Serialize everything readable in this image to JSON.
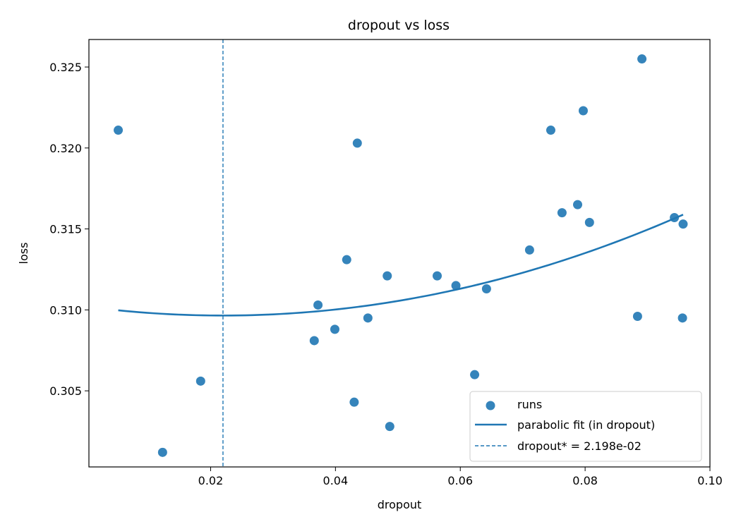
{
  "chart_data": {
    "type": "scatter",
    "title": "dropout vs loss",
    "xlabel": "dropout",
    "ylabel": "loss",
    "xlim": [
      0.0005,
      0.1
    ],
    "ylim": [
      0.3003,
      0.3267
    ],
    "xticks": [
      0.02,
      0.04,
      0.06,
      0.08,
      0.1
    ],
    "xtick_labels": [
      "0.02",
      "0.04",
      "0.06",
      "0.08",
      "0.10"
    ],
    "yticks": [
      0.305,
      0.31,
      0.315,
      0.32,
      0.325
    ],
    "ytick_labels": [
      "0.305",
      "0.310",
      "0.315",
      "0.320",
      "0.325"
    ],
    "grid": false,
    "legend_position": "bottom-right",
    "colors": {
      "points": "#1f77b4",
      "fit": "#1f77b4",
      "vline": "#1f77b4"
    },
    "series": [
      {
        "name": "runs",
        "kind": "scatter",
        "x": [
          0.0052,
          0.0123,
          0.0184,
          0.0366,
          0.0372,
          0.0399,
          0.0418,
          0.043,
          0.0435,
          0.0452,
          0.0483,
          0.0487,
          0.0563,
          0.0593,
          0.0623,
          0.0642,
          0.0711,
          0.0745,
          0.0763,
          0.0788,
          0.0797,
          0.0807,
          0.0884,
          0.0891,
          0.0943,
          0.0956,
          0.0957
        ],
        "y": [
          0.3211,
          0.3012,
          0.3056,
          0.3081,
          0.3103,
          0.3088,
          0.3131,
          0.3043,
          0.3203,
          0.3095,
          0.3121,
          0.3028,
          0.3121,
          0.3115,
          0.306,
          0.3113,
          0.3137,
          0.3211,
          0.316,
          0.3165,
          0.3223,
          0.3154,
          0.3096,
          0.3255,
          0.3157,
          0.3095,
          0.3153
        ]
      },
      {
        "name": "parabolic fit (in dropout)",
        "kind": "line",
        "x_range": [
          0.0052,
          0.0957
        ],
        "quadratic": {
          "vertex_x": 0.02198,
          "vertex_y": 0.30965,
          "a": 1.1466
        }
      },
      {
        "name": "dropout* = 2.198e-02",
        "kind": "vline",
        "x": 0.02198
      }
    ]
  }
}
